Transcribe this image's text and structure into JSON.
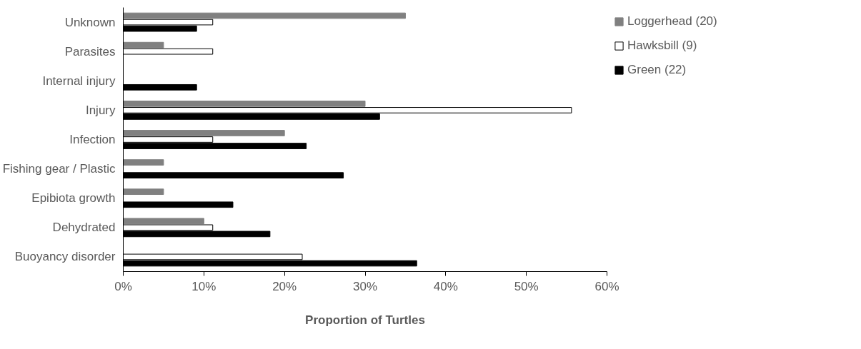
{
  "chart_data": {
    "type": "bar",
    "orientation": "horizontal",
    "xlabel": "Proportion of Turtles",
    "categories": [
      "Unknown",
      "Parasites",
      "Internal injury",
      "Injury",
      "Infection",
      "Fishing gear / Plastic",
      "Epibiota growth",
      "Dehydrated",
      "Buoyancy disorder"
    ],
    "series": [
      {
        "name": "Loggerhead (20)",
        "color": "#808080",
        "values": [
          35,
          5,
          0,
          30,
          20,
          5,
          5,
          10,
          0
        ]
      },
      {
        "name": "Hawksbill (9)",
        "color": "#ffffff",
        "values": [
          11.1,
          11.1,
          0,
          55.6,
          11.1,
          0,
          0,
          11.1,
          22.2
        ]
      },
      {
        "name": "Green (22)",
        "color": "#000000",
        "values": [
          9.1,
          0,
          9.1,
          31.8,
          22.7,
          27.3,
          13.6,
          18.2,
          36.4
        ]
      }
    ],
    "xlim": [
      0,
      60
    ],
    "xticks": [
      {
        "value": 0,
        "label": "0%"
      },
      {
        "value": 10,
        "label": "10%"
      },
      {
        "value": 20,
        "label": "20%"
      },
      {
        "value": 30,
        "label": "30%"
      },
      {
        "value": 40,
        "label": "40%"
      },
      {
        "value": 50,
        "label": "50%"
      },
      {
        "value": 60,
        "label": "60%"
      }
    ],
    "legend": "right"
  }
}
